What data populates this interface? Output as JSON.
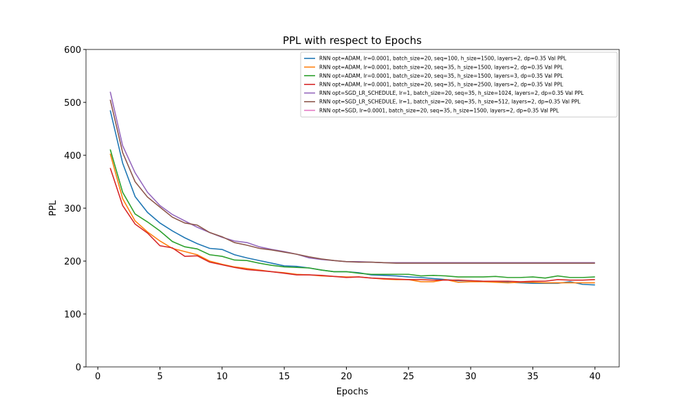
{
  "chart_data": {
    "type": "line",
    "title": "PPL with respect to Epochs",
    "x_label": "Epochs",
    "y_label": "PPL",
    "x": [
      1,
      2,
      3,
      4,
      5,
      6,
      7,
      8,
      9,
      10,
      11,
      12,
      13,
      14,
      15,
      16,
      17,
      18,
      19,
      20,
      21,
      22,
      23,
      24,
      25,
      26,
      27,
      28,
      29,
      30,
      31,
      32,
      33,
      34,
      35,
      36,
      37,
      38,
      39,
      40
    ],
    "series": [
      {
        "name": "RNN opt=ADAM, lr=0.0001, batch_size=20, seq=100, h_size=1500, layers=2, dp=0.35 Val PPL",
        "color": "#1f77b4",
        "values": [
          485,
          385,
          322,
          292,
          272,
          257,
          244,
          233,
          224,
          222,
          212,
          206,
          201,
          196,
          191,
          190,
          187,
          183,
          180,
          180,
          178,
          174,
          173,
          172,
          170,
          169,
          167,
          165,
          163,
          163,
          162,
          161,
          160,
          159,
          158,
          158,
          158,
          161,
          156,
          155
        ]
      },
      {
        "name": "RNN opt=ADAM, lr=0.0001, batch_size=20, seq=35, h_size=1500, layers=2, dp=0.35 Val PPL",
        "color": "#ff7f0e",
        "values": [
          403,
          318,
          276,
          255,
          238,
          224,
          218,
          212,
          200,
          194,
          189,
          186,
          183,
          180,
          178,
          175,
          174,
          172,
          171,
          170,
          170,
          168,
          166,
          165,
          165,
          161,
          161,
          165,
          160,
          161,
          161,
          160,
          159,
          160,
          160,
          159,
          159,
          159,
          159,
          159
        ]
      },
      {
        "name": "RNN opt=ADAM, lr=0.0001, batch_size=20, seq=35, h_size=1500, layers=3, dp=0.35 Val PPL",
        "color": "#2ca02c",
        "values": [
          411,
          330,
          289,
          274,
          257,
          237,
          227,
          223,
          212,
          209,
          202,
          201,
          196,
          192,
          189,
          188,
          187,
          183,
          180,
          180,
          177,
          175,
          175,
          175,
          175,
          172,
          173,
          172,
          170,
          170,
          170,
          171,
          169,
          169,
          170,
          168,
          172,
          169,
          169,
          170
        ]
      },
      {
        "name": "RNN opt=ADAM, lr=0.0001, batch_size=20, seq=35, h_size=2500, layers=2, dp=0.35 Val PPL",
        "color": "#d62728",
        "values": [
          376,
          305,
          270,
          253,
          229,
          225,
          209,
          210,
          198,
          193,
          188,
          184,
          182,
          180,
          177,
          174,
          174,
          173,
          171,
          169,
          170,
          168,
          167,
          166,
          165,
          165,
          164,
          164,
          164,
          163,
          162,
          162,
          162,
          161,
          162,
          162,
          165,
          164,
          164,
          165
        ]
      },
      {
        "name": "RNN opt=SGD_LR_SCHEDULE, lr=1, batch_size=20, seq=35, h_size=1024, layers=2, dp=0.35 Val PPL",
        "color": "#9467bd",
        "values": [
          520,
          418,
          367,
          330,
          305,
          288,
          276,
          264,
          254,
          245,
          238,
          235,
          227,
          222,
          218,
          213,
          206,
          203,
          201,
          199,
          199,
          198,
          197,
          197,
          197,
          197,
          197,
          197,
          197,
          197,
          197,
          197,
          197,
          197,
          197,
          197,
          197,
          197,
          197,
          197
        ]
      },
      {
        "name": "RNN opt=SGD_LR_SCHEDULE, lr=1, batch_size=20, seq=35, h_size=512, layers=2, dp=0.35 Val PPL",
        "color": "#8c564b",
        "values": [
          505,
          405,
          350,
          321,
          302,
          283,
          272,
          268,
          254,
          246,
          235,
          230,
          224,
          221,
          217,
          213,
          208,
          204,
          201,
          199,
          198,
          198,
          197,
          196,
          196,
          196,
          196,
          196,
          196,
          196,
          196,
          196,
          196,
          196,
          196,
          196,
          196,
          196,
          196,
          196
        ]
      },
      {
        "name": "RNN opt=SGD, lr=0.0001, batch_size=20, seq=35, h_size=1500, layers=2, dp=0.35 Val PPL",
        "color": "#e377c2",
        "values": [
          null,
          null,
          null,
          null,
          null,
          null,
          null,
          null,
          null,
          null,
          null,
          null,
          null,
          null,
          null,
          null,
          null,
          null,
          null,
          null,
          null,
          null,
          null,
          null,
          null,
          null,
          null,
          null,
          null,
          null,
          null,
          null,
          null,
          null,
          null,
          null,
          null,
          null,
          null,
          null
        ]
      }
    ],
    "xlim": [
      -0.95,
      41.95
    ],
    "xticks": [
      0,
      5,
      10,
      15,
      20,
      25,
      30,
      35,
      40
    ],
    "ylim": [
      0,
      600
    ],
    "yticks": [
      0,
      100,
      200,
      300,
      400,
      500,
      600
    ],
    "grid": false,
    "legend": "upper right"
  }
}
